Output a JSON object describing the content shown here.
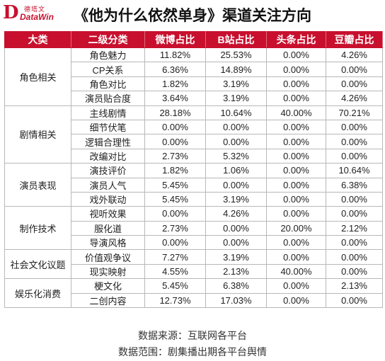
{
  "logo": {
    "mark": "D",
    "cn": "德塔文",
    "en": "DataWin"
  },
  "chart_data": {
    "type": "table",
    "title": "《他为什么依然单身》渠道关注方向",
    "columns": [
      "大类",
      "二级分类",
      "微博占比",
      "B站占比",
      "头条占比",
      "豆瓣占比"
    ],
    "groups": [
      {
        "category": "角色相关",
        "rows": [
          {
            "sub": "角色魅力",
            "weibo": "11.82%",
            "bilibili": "25.53%",
            "toutiao": "0.00%",
            "douban": "4.26%"
          },
          {
            "sub": "CP关系",
            "weibo": "6.36%",
            "bilibili": "14.89%",
            "toutiao": "0.00%",
            "douban": "0.00%"
          },
          {
            "sub": "角色对比",
            "weibo": "1.82%",
            "bilibili": "3.19%",
            "toutiao": "0.00%",
            "douban": "0.00%"
          },
          {
            "sub": "演员贴合度",
            "weibo": "3.64%",
            "bilibili": "3.19%",
            "toutiao": "0.00%",
            "douban": "4.26%"
          }
        ]
      },
      {
        "category": "剧情相关",
        "rows": [
          {
            "sub": "主线剧情",
            "weibo": "28.18%",
            "bilibili": "10.64%",
            "toutiao": "40.00%",
            "douban": "70.21%"
          },
          {
            "sub": "细节伏笔",
            "weibo": "0.00%",
            "bilibili": "0.00%",
            "toutiao": "0.00%",
            "douban": "0.00%"
          },
          {
            "sub": "逻辑合理性",
            "weibo": "0.00%",
            "bilibili": "0.00%",
            "toutiao": "0.00%",
            "douban": "0.00%"
          },
          {
            "sub": "改编对比",
            "weibo": "2.73%",
            "bilibili": "5.32%",
            "toutiao": "0.00%",
            "douban": "0.00%"
          }
        ]
      },
      {
        "category": "演员表现",
        "rows": [
          {
            "sub": "演技评价",
            "weibo": "1.82%",
            "bilibili": "1.06%",
            "toutiao": "0.00%",
            "douban": "10.64%"
          },
          {
            "sub": "演员人气",
            "weibo": "5.45%",
            "bilibili": "0.00%",
            "toutiao": "0.00%",
            "douban": "6.38%"
          },
          {
            "sub": "戏外联动",
            "weibo": "5.45%",
            "bilibili": "3.19%",
            "toutiao": "0.00%",
            "douban": "0.00%"
          }
        ]
      },
      {
        "category": "制作技术",
        "rows": [
          {
            "sub": "视听效果",
            "weibo": "0.00%",
            "bilibili": "4.26%",
            "toutiao": "0.00%",
            "douban": "0.00%"
          },
          {
            "sub": "服化道",
            "weibo": "2.73%",
            "bilibili": "0.00%",
            "toutiao": "20.00%",
            "douban": "2.12%"
          },
          {
            "sub": "导演风格",
            "weibo": "0.00%",
            "bilibili": "0.00%",
            "toutiao": "0.00%",
            "douban": "0.00%"
          }
        ]
      },
      {
        "category": "社会文化议题",
        "rows": [
          {
            "sub": "价值观争议",
            "weibo": "7.27%",
            "bilibili": "3.19%",
            "toutiao": "0.00%",
            "douban": "0.00%"
          },
          {
            "sub": "现实映射",
            "weibo": "4.55%",
            "bilibili": "2.13%",
            "toutiao": "40.00%",
            "douban": "0.00%"
          }
        ]
      },
      {
        "category": "娱乐化消费",
        "rows": [
          {
            "sub": "梗文化",
            "weibo": "5.45%",
            "bilibili": "6.38%",
            "toutiao": "0.00%",
            "douban": "2.13%"
          },
          {
            "sub": "二创内容",
            "weibo": "12.73%",
            "bilibili": "17.03%",
            "toutiao": "0.00%",
            "douban": "0.00%"
          }
        ]
      }
    ]
  },
  "footer": {
    "source": "数据来源：互联网各平台",
    "scope": "数据范围：剧集播出期各平台舆情"
  }
}
